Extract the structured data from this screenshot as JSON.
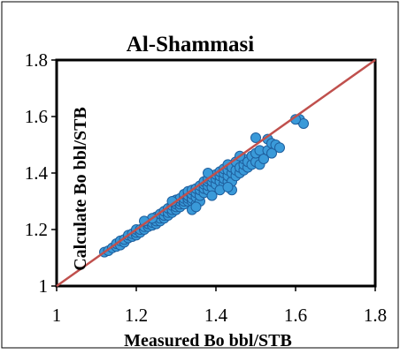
{
  "chart_data": {
    "type": "scatter",
    "title": "Al-Shammasi",
    "xlabel": "Measured Bo bbl/STB",
    "ylabel": "Calculate Bo bbl/STB",
    "xlim": [
      1,
      1.8
    ],
    "ylim": [
      1,
      1.8
    ],
    "xticks": [
      "1",
      "1.2",
      "1.4",
      "1.6",
      "1.8"
    ],
    "yticks": [
      "1",
      "1.2",
      "1.4",
      "1.6",
      "1.8"
    ],
    "grid": false,
    "legend": "none",
    "point_color": "#3a9ad9",
    "point_edge_color": "#1f5f9e",
    "line_color": "#c0504d",
    "reference_line": [
      [
        1,
        1
      ],
      [
        1.8,
        1.8
      ]
    ],
    "points": [
      [
        1.12,
        1.12
      ],
      [
        1.13,
        1.125
      ],
      [
        1.14,
        1.135
      ],
      [
        1.15,
        1.14
      ],
      [
        1.15,
        1.15
      ],
      [
        1.16,
        1.145
      ],
      [
        1.16,
        1.16
      ],
      [
        1.17,
        1.155
      ],
      [
        1.17,
        1.165
      ],
      [
        1.18,
        1.17
      ],
      [
        1.18,
        1.18
      ],
      [
        1.19,
        1.175
      ],
      [
        1.19,
        1.185
      ],
      [
        1.2,
        1.18
      ],
      [
        1.2,
        1.19
      ],
      [
        1.2,
        1.2
      ],
      [
        1.21,
        1.19
      ],
      [
        1.21,
        1.2
      ],
      [
        1.22,
        1.2
      ],
      [
        1.22,
        1.21
      ],
      [
        1.23,
        1.21
      ],
      [
        1.23,
        1.22
      ],
      [
        1.24,
        1.215
      ],
      [
        1.24,
        1.225
      ],
      [
        1.25,
        1.22
      ],
      [
        1.25,
        1.23
      ],
      [
        1.25,
        1.245
      ],
      [
        1.26,
        1.23
      ],
      [
        1.26,
        1.24
      ],
      [
        1.26,
        1.255
      ],
      [
        1.27,
        1.24
      ],
      [
        1.27,
        1.25
      ],
      [
        1.27,
        1.265
      ],
      [
        1.28,
        1.25
      ],
      [
        1.28,
        1.26
      ],
      [
        1.28,
        1.275
      ],
      [
        1.29,
        1.26
      ],
      [
        1.29,
        1.27
      ],
      [
        1.29,
        1.285
      ],
      [
        1.3,
        1.27
      ],
      [
        1.3,
        1.28
      ],
      [
        1.3,
        1.29
      ],
      [
        1.3,
        1.305
      ],
      [
        1.31,
        1.28
      ],
      [
        1.31,
        1.29
      ],
      [
        1.31,
        1.3
      ],
      [
        1.31,
        1.31
      ],
      [
        1.32,
        1.29
      ],
      [
        1.32,
        1.3
      ],
      [
        1.32,
        1.31
      ],
      [
        1.32,
        1.325
      ],
      [
        1.33,
        1.3
      ],
      [
        1.33,
        1.31
      ],
      [
        1.33,
        1.32
      ],
      [
        1.33,
        1.335
      ],
      [
        1.34,
        1.3
      ],
      [
        1.34,
        1.31
      ],
      [
        1.34,
        1.325
      ],
      [
        1.34,
        1.34
      ],
      [
        1.35,
        1.29
      ],
      [
        1.35,
        1.315
      ],
      [
        1.35,
        1.33
      ],
      [
        1.35,
        1.345
      ],
      [
        1.36,
        1.3
      ],
      [
        1.36,
        1.32
      ],
      [
        1.36,
        1.34
      ],
      [
        1.36,
        1.355
      ],
      [
        1.37,
        1.33
      ],
      [
        1.37,
        1.345
      ],
      [
        1.37,
        1.36
      ],
      [
        1.37,
        1.37
      ],
      [
        1.38,
        1.34
      ],
      [
        1.38,
        1.355
      ],
      [
        1.38,
        1.37
      ],
      [
        1.38,
        1.38
      ],
      [
        1.39,
        1.35
      ],
      [
        1.39,
        1.37
      ],
      [
        1.39,
        1.385
      ],
      [
        1.4,
        1.36
      ],
      [
        1.4,
        1.38
      ],
      [
        1.4,
        1.395
      ],
      [
        1.41,
        1.37
      ],
      [
        1.41,
        1.39
      ],
      [
        1.41,
        1.405
      ],
      [
        1.42,
        1.36
      ],
      [
        1.42,
        1.38
      ],
      [
        1.42,
        1.4
      ],
      [
        1.42,
        1.415
      ],
      [
        1.43,
        1.37
      ],
      [
        1.43,
        1.39
      ],
      [
        1.43,
        1.41
      ],
      [
        1.43,
        1.43
      ],
      [
        1.44,
        1.34
      ],
      [
        1.44,
        1.37
      ],
      [
        1.44,
        1.4
      ],
      [
        1.44,
        1.42
      ],
      [
        1.45,
        1.39
      ],
      [
        1.45,
        1.41
      ],
      [
        1.45,
        1.44
      ],
      [
        1.46,
        1.4
      ],
      [
        1.46,
        1.42
      ],
      [
        1.47,
        1.41
      ],
      [
        1.47,
        1.43
      ],
      [
        1.47,
        1.45
      ],
      [
        1.48,
        1.42
      ],
      [
        1.48,
        1.44
      ],
      [
        1.49,
        1.43
      ],
      [
        1.49,
        1.46
      ],
      [
        1.5,
        1.44
      ],
      [
        1.5,
        1.47
      ],
      [
        1.5,
        1.525
      ],
      [
        1.51,
        1.43
      ],
      [
        1.51,
        1.48
      ],
      [
        1.52,
        1.45
      ],
      [
        1.53,
        1.48
      ],
      [
        1.53,
        1.52
      ],
      [
        1.54,
        1.47
      ],
      [
        1.54,
        1.505
      ],
      [
        1.55,
        1.5
      ],
      [
        1.56,
        1.49
      ],
      [
        1.34,
        1.27
      ],
      [
        1.35,
        1.28
      ],
      [
        1.39,
        1.32
      ],
      [
        1.41,
        1.34
      ],
      [
        1.43,
        1.35
      ],
      [
        1.46,
        1.46
      ],
      [
        1.29,
        1.3
      ],
      [
        1.24,
        1.24
      ],
      [
        1.22,
        1.23
      ],
      [
        1.38,
        1.4
      ],
      [
        1.61,
        1.59
      ],
      [
        1.62,
        1.575
      ],
      [
        1.6,
        1.59
      ]
    ]
  }
}
